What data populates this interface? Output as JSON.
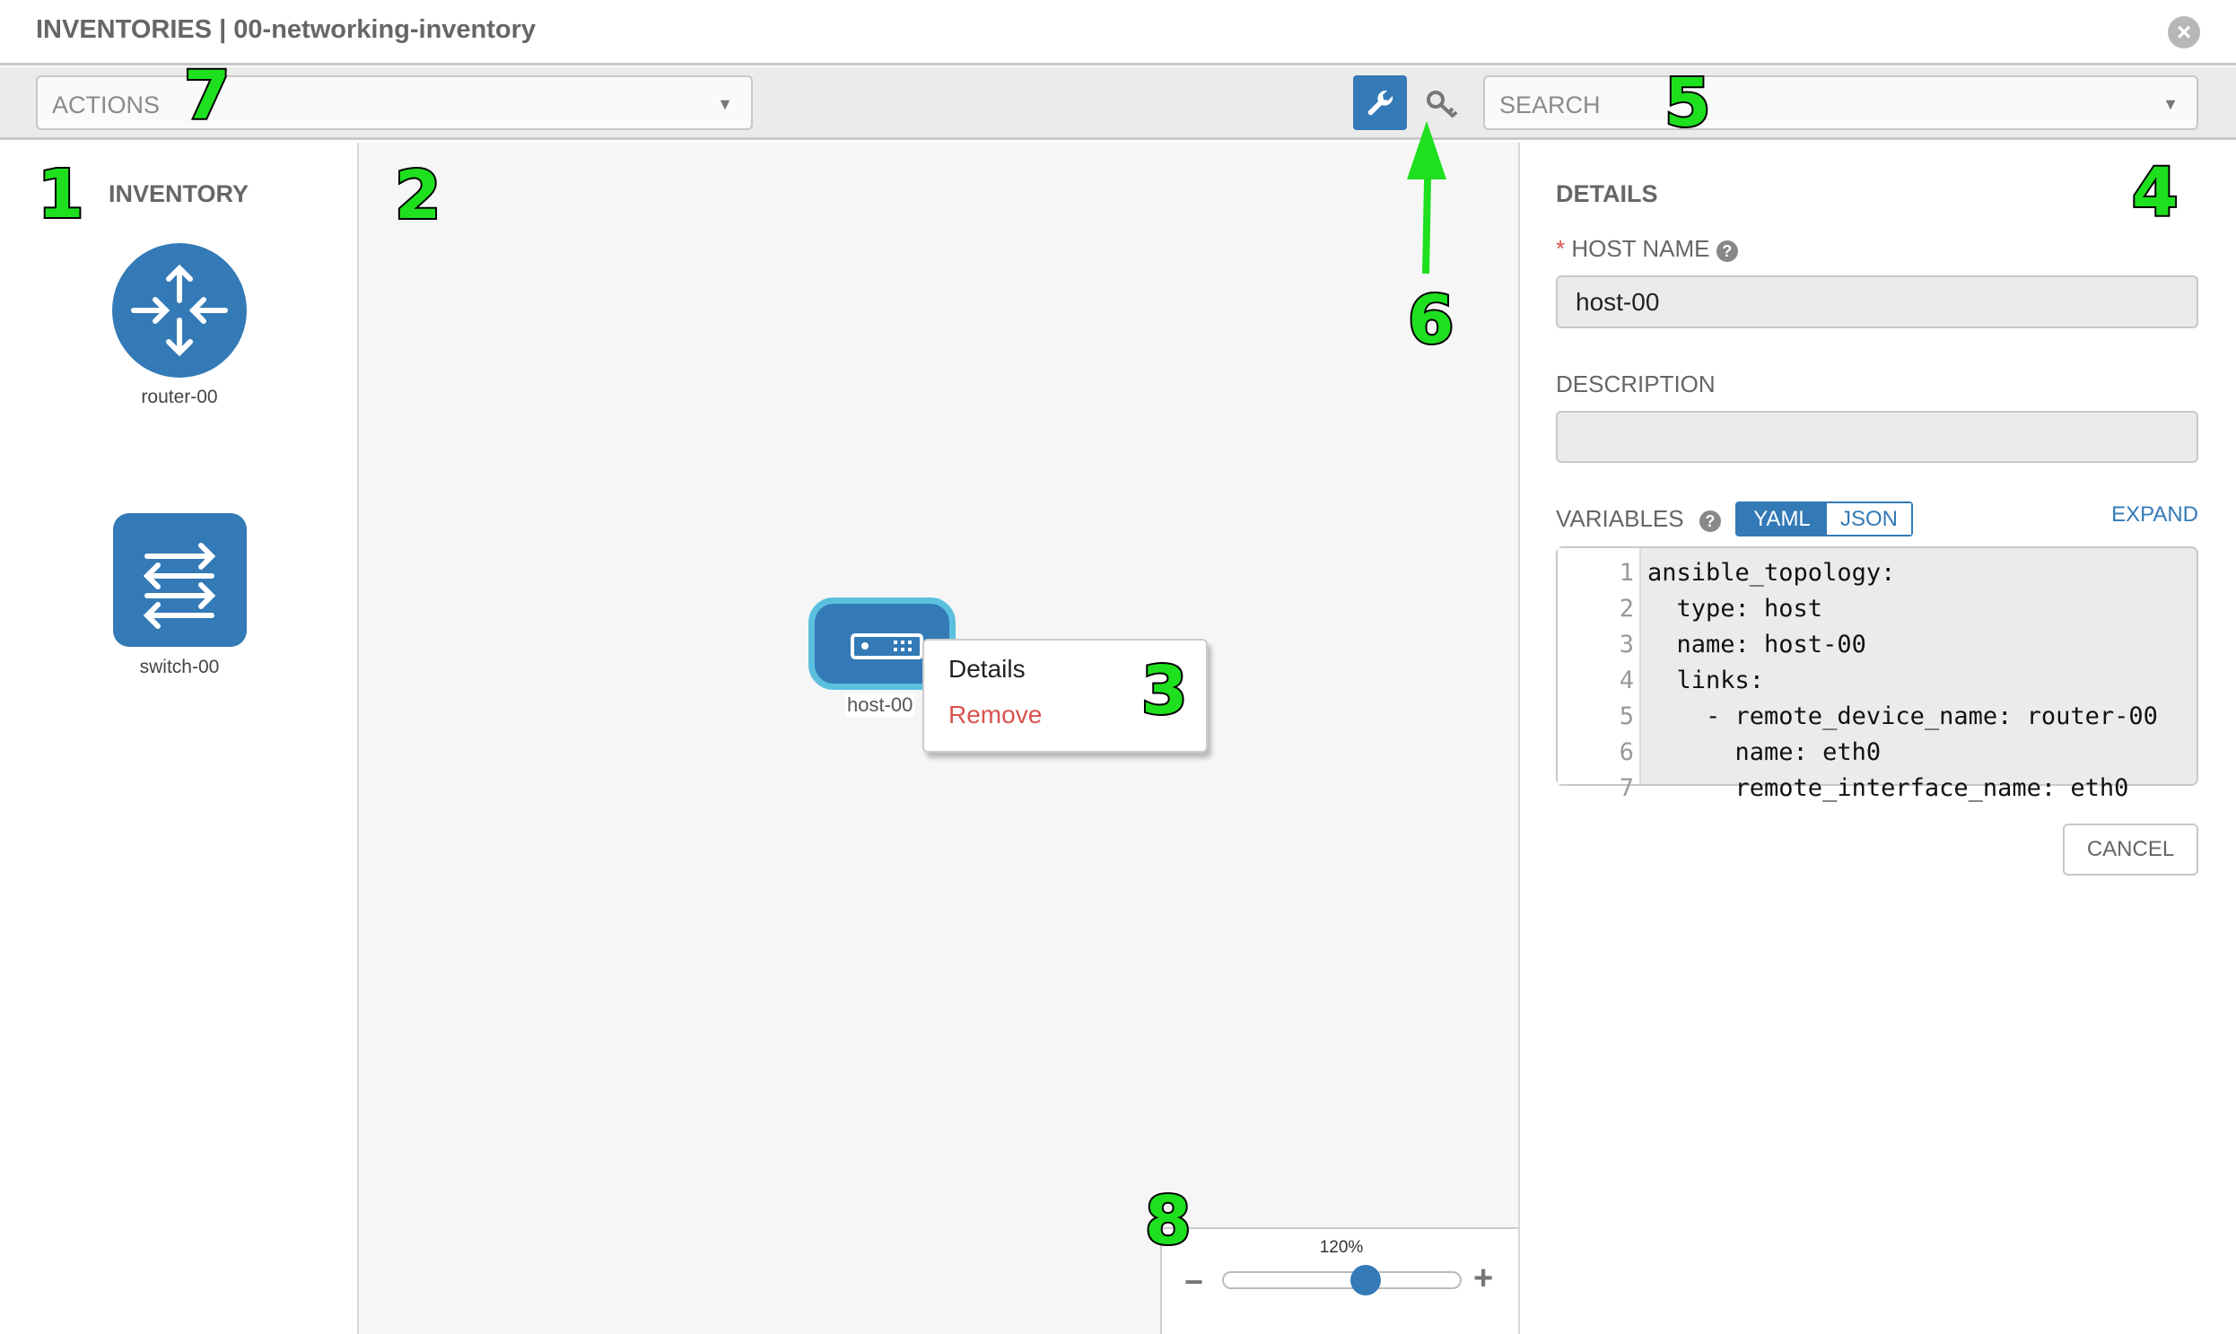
{
  "header": {
    "title": "INVENTORIES | 00-networking-inventory",
    "close_icon": "close-circle-icon"
  },
  "toolbar": {
    "actions_placeholder": "ACTIONS",
    "search_placeholder": "SEARCH",
    "wrench_icon": "wrench-icon",
    "key_icon": "key-icon",
    "active_color": "#337ab7"
  },
  "inventory": {
    "title": "INVENTORY",
    "items": [
      {
        "label": "router-00",
        "icon": "router-icon"
      },
      {
        "label": "switch-00",
        "icon": "switch-icon"
      }
    ]
  },
  "canvas": {
    "node": {
      "label": "host-00",
      "icon": "server-icon"
    },
    "context_menu": {
      "details": "Details",
      "remove": "Remove"
    },
    "zoom": {
      "level": "120%",
      "value_percent": 120,
      "minus": "−",
      "plus": "+"
    }
  },
  "details": {
    "title": "DETAILS",
    "required_mark": "*",
    "host_name_label": "HOST NAME",
    "host_name_value": "host-00",
    "description_label": "DESCRIPTION",
    "description_value": "",
    "variables_label": "VARIABLES",
    "yaml": "YAML",
    "json": "JSON",
    "expand": "EXPAND",
    "code_lines": [
      "ansible_topology:",
      "  type: host",
      "  name: host-00",
      "  links:",
      "    - remote_device_name: router-00",
      "      name: eth0",
      "      remote_interface_name: eth0"
    ],
    "cancel": "CANCEL"
  },
  "annotations": [
    "1",
    "2",
    "3",
    "4",
    "5",
    "6",
    "7",
    "8"
  ]
}
